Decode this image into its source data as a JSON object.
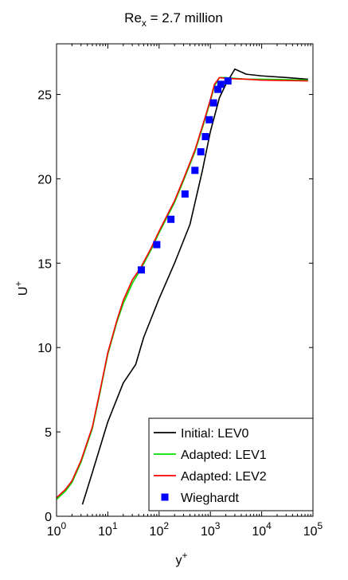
{
  "chart_data": {
    "type": "line",
    "title": {
      "main": "Re",
      "sub": "x",
      "rest": " = 2.7 million"
    },
    "xlabel": {
      "main": "y",
      "sup": "+"
    },
    "ylabel": {
      "main": "U",
      "sup": "+"
    },
    "xscale": "log",
    "xlim": [
      1,
      100000
    ],
    "ylim": [
      0,
      28
    ],
    "xticks": [
      {
        "value": 1,
        "base": "10",
        "exp": "0"
      },
      {
        "value": 10,
        "base": "10",
        "exp": "1"
      },
      {
        "value": 100,
        "base": "10",
        "exp": "2"
      },
      {
        "value": 1000,
        "base": "10",
        "exp": "3"
      },
      {
        "value": 10000,
        "base": "10",
        "exp": "4"
      },
      {
        "value": 100000,
        "base": "10",
        "exp": "5"
      }
    ],
    "yticks": [
      {
        "value": 0,
        "label": "0"
      },
      {
        "value": 5,
        "label": "5"
      },
      {
        "value": 10,
        "label": "10"
      },
      {
        "value": 15,
        "label": "15"
      },
      {
        "value": 20,
        "label": "20"
      },
      {
        "value": 25,
        "label": "25"
      }
    ],
    "grid": false,
    "legend_position": "bottom-right",
    "series": [
      {
        "name": "Initial: LEV0",
        "kind": "line",
        "color": "#000000",
        "points": [
          [
            3.2,
            0.7
          ],
          [
            5,
            2.6
          ],
          [
            10,
            5.6
          ],
          [
            20,
            7.9
          ],
          [
            35,
            9.0
          ],
          [
            50,
            10.6
          ],
          [
            100,
            12.9
          ],
          [
            200,
            15.0
          ],
          [
            400,
            17.3
          ],
          [
            700,
            20.5
          ],
          [
            1000,
            22.8
          ],
          [
            1500,
            24.8
          ],
          [
            2000,
            25.6
          ],
          [
            3000,
            26.5
          ],
          [
            5000,
            26.2
          ],
          [
            10000,
            26.1
          ],
          [
            30000,
            26.0
          ],
          [
            80000,
            25.9
          ]
        ]
      },
      {
        "name": "Adapted: LEV1",
        "kind": "line",
        "color": "#00e000",
        "points": [
          [
            1,
            1.0
          ],
          [
            1.5,
            1.5
          ],
          [
            2,
            2.0
          ],
          [
            3,
            3.2
          ],
          [
            5,
            5.2
          ],
          [
            7,
            7.3
          ],
          [
            10,
            9.6
          ],
          [
            15,
            11.5
          ],
          [
            20,
            12.6
          ],
          [
            30,
            13.8
          ],
          [
            45,
            14.7
          ],
          [
            70,
            15.8
          ],
          [
            100,
            16.8
          ],
          [
            200,
            18.6
          ],
          [
            300,
            19.9
          ],
          [
            500,
            21.6
          ],
          [
            800,
            23.6
          ],
          [
            1000,
            24.6
          ],
          [
            1200,
            25.5
          ],
          [
            1500,
            26.0
          ],
          [
            2000,
            26.0
          ],
          [
            5000,
            25.9
          ],
          [
            10000,
            25.9
          ],
          [
            80000,
            25.85
          ]
        ]
      },
      {
        "name": "Adapted: LEV2",
        "kind": "line",
        "color": "#ff0000",
        "points": [
          [
            1,
            1.1
          ],
          [
            1.5,
            1.6
          ],
          [
            2,
            2.1
          ],
          [
            3,
            3.3
          ],
          [
            5,
            5.3
          ],
          [
            7,
            7.4
          ],
          [
            10,
            9.7
          ],
          [
            15,
            11.6
          ],
          [
            20,
            12.8
          ],
          [
            30,
            14.0
          ],
          [
            45,
            14.8
          ],
          [
            70,
            15.9
          ],
          [
            100,
            16.9
          ],
          [
            200,
            18.7
          ],
          [
            300,
            20.0
          ],
          [
            500,
            21.7
          ],
          [
            800,
            23.7
          ],
          [
            1000,
            24.7
          ],
          [
            1200,
            25.6
          ],
          [
            1500,
            26.0
          ],
          [
            2000,
            25.95
          ],
          [
            5000,
            25.9
          ],
          [
            10000,
            25.85
          ],
          [
            80000,
            25.8
          ]
        ]
      },
      {
        "name": "Wieghardt",
        "kind": "scatter",
        "color": "#0000ff",
        "points": [
          [
            45,
            14.6
          ],
          [
            90,
            16.1
          ],
          [
            170,
            17.6
          ],
          [
            320,
            19.1
          ],
          [
            500,
            20.5
          ],
          [
            650,
            21.6
          ],
          [
            800,
            22.5
          ],
          [
            950,
            23.5
          ],
          [
            1150,
            24.5
          ],
          [
            1400,
            25.3
          ],
          [
            1600,
            25.6
          ],
          [
            2200,
            25.8
          ]
        ]
      }
    ]
  }
}
